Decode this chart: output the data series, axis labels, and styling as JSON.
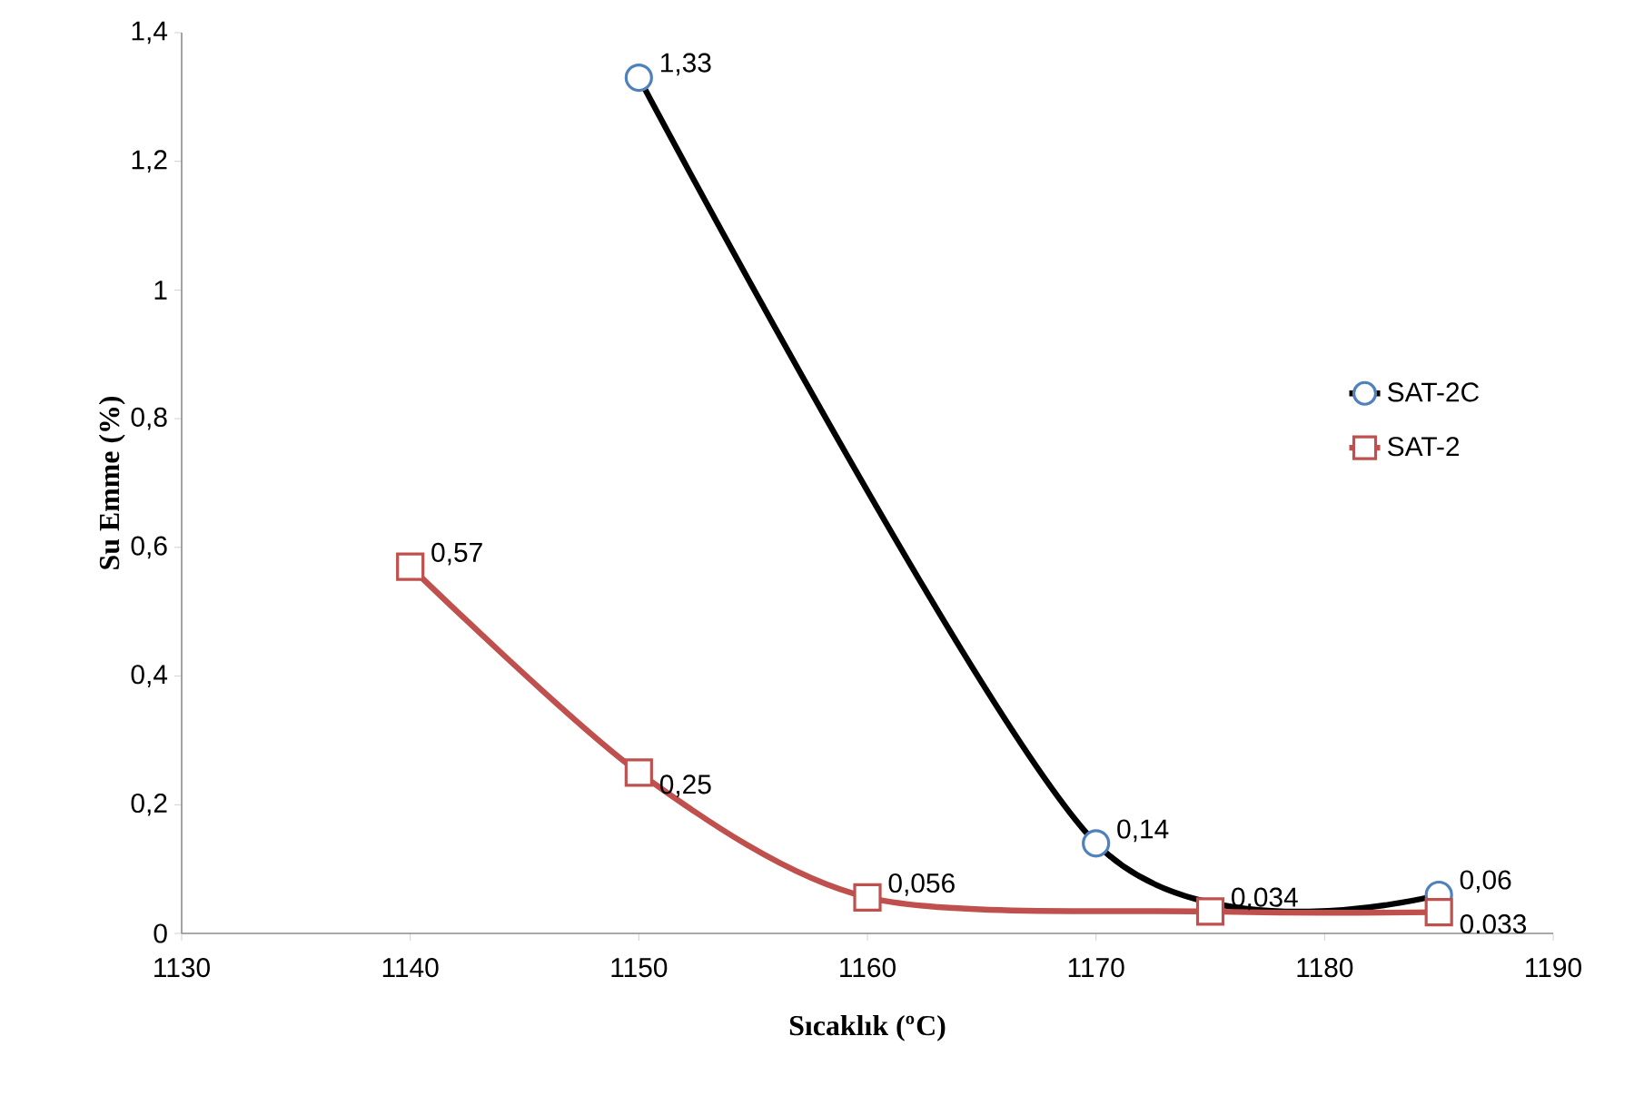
{
  "chart_data": {
    "type": "line",
    "xlabel": "Sıcaklık (º$^{}$C)",
    "ylabel": "Su Emme (%)",
    "xlim": [
      1130,
      1190
    ],
    "xticks": [
      1130,
      1140,
      1150,
      1160,
      1170,
      1180,
      1190
    ],
    "ylim": [
      0,
      1.4
    ],
    "yticks": [
      0,
      {
        "value": 0.2,
        "label": "0,2"
      },
      {
        "value": 0.4,
        "label": "0,4"
      },
      {
        "value": 0.6,
        "label": "0,6"
      },
      {
        "value": 0.8,
        "label": "0,8"
      },
      1,
      {
        "value": 1.2,
        "label": "1,2"
      },
      {
        "value": 1.4,
        "label": "1,4"
      }
    ],
    "grid": false,
    "legend": "right",
    "series": [
      {
        "name": "SAT-2C",
        "color": "#000000",
        "colors": [
          "#4f81bd",
          "#4f81bd",
          "#4f81bd"
        ],
        "marker": "circle",
        "x": [
          1150,
          1170,
          1185
        ],
        "values": [
          1.33,
          0.14,
          0.06
        ],
        "value_labels": [
          "1,33",
          "0,14",
          "0,06"
        ]
      },
      {
        "name": "SAT-2",
        "color": "#c0504d",
        "colors": [
          "#c0504d",
          "#c0504d",
          "#c0504d",
          "#c0504d",
          "#c0504d"
        ],
        "marker": "square",
        "x": [
          1140,
          1150,
          1160,
          1175,
          1185
        ],
        "values": [
          0.57,
          0.25,
          0.056,
          0.034,
          0.033
        ],
        "value_labels": [
          "0,57",
          "0,25",
          "0,056",
          "0,034",
          "0,033"
        ]
      }
    ]
  }
}
